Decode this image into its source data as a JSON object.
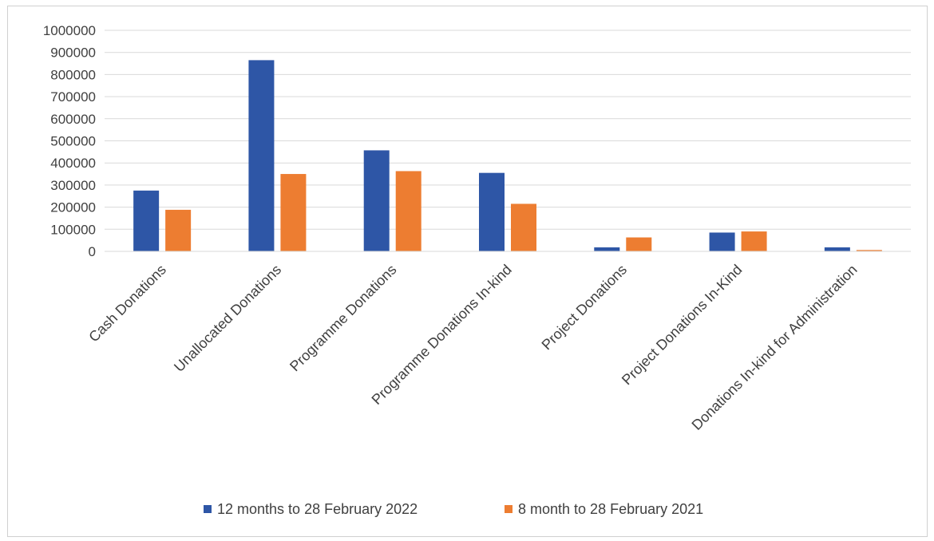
{
  "chart_data": {
    "type": "bar",
    "title": "",
    "xlabel": "",
    "ylabel": "",
    "ylim": [
      0,
      1000000
    ],
    "yticks": [
      0,
      100000,
      200000,
      300000,
      400000,
      500000,
      600000,
      700000,
      800000,
      900000,
      1000000
    ],
    "ytick_labels": [
      "0",
      "100000",
      "200000",
      "300000",
      "400000",
      "500000",
      "600000",
      "700000",
      "800000",
      "900000",
      "1000000"
    ],
    "grid": true,
    "legend_position": "bottom",
    "categories": [
      "Cash Donations",
      "Unallocated Donations",
      "Programme Donations",
      "Programme Donations In-kind",
      "Project Donations",
      "Project Donations In-Kind",
      "Donations In-kind for Administration"
    ],
    "series": [
      {
        "name": "12 months to 28 February 2022",
        "color": "#2e56a6",
        "values": [
          275000,
          865000,
          457000,
          355000,
          18000,
          85000,
          18000
        ]
      },
      {
        "name": "8 month to 28 February 2021",
        "color": "#ed7d31",
        "values": [
          188000,
          350000,
          363000,
          215000,
          63000,
          90000,
          6000
        ]
      }
    ]
  }
}
